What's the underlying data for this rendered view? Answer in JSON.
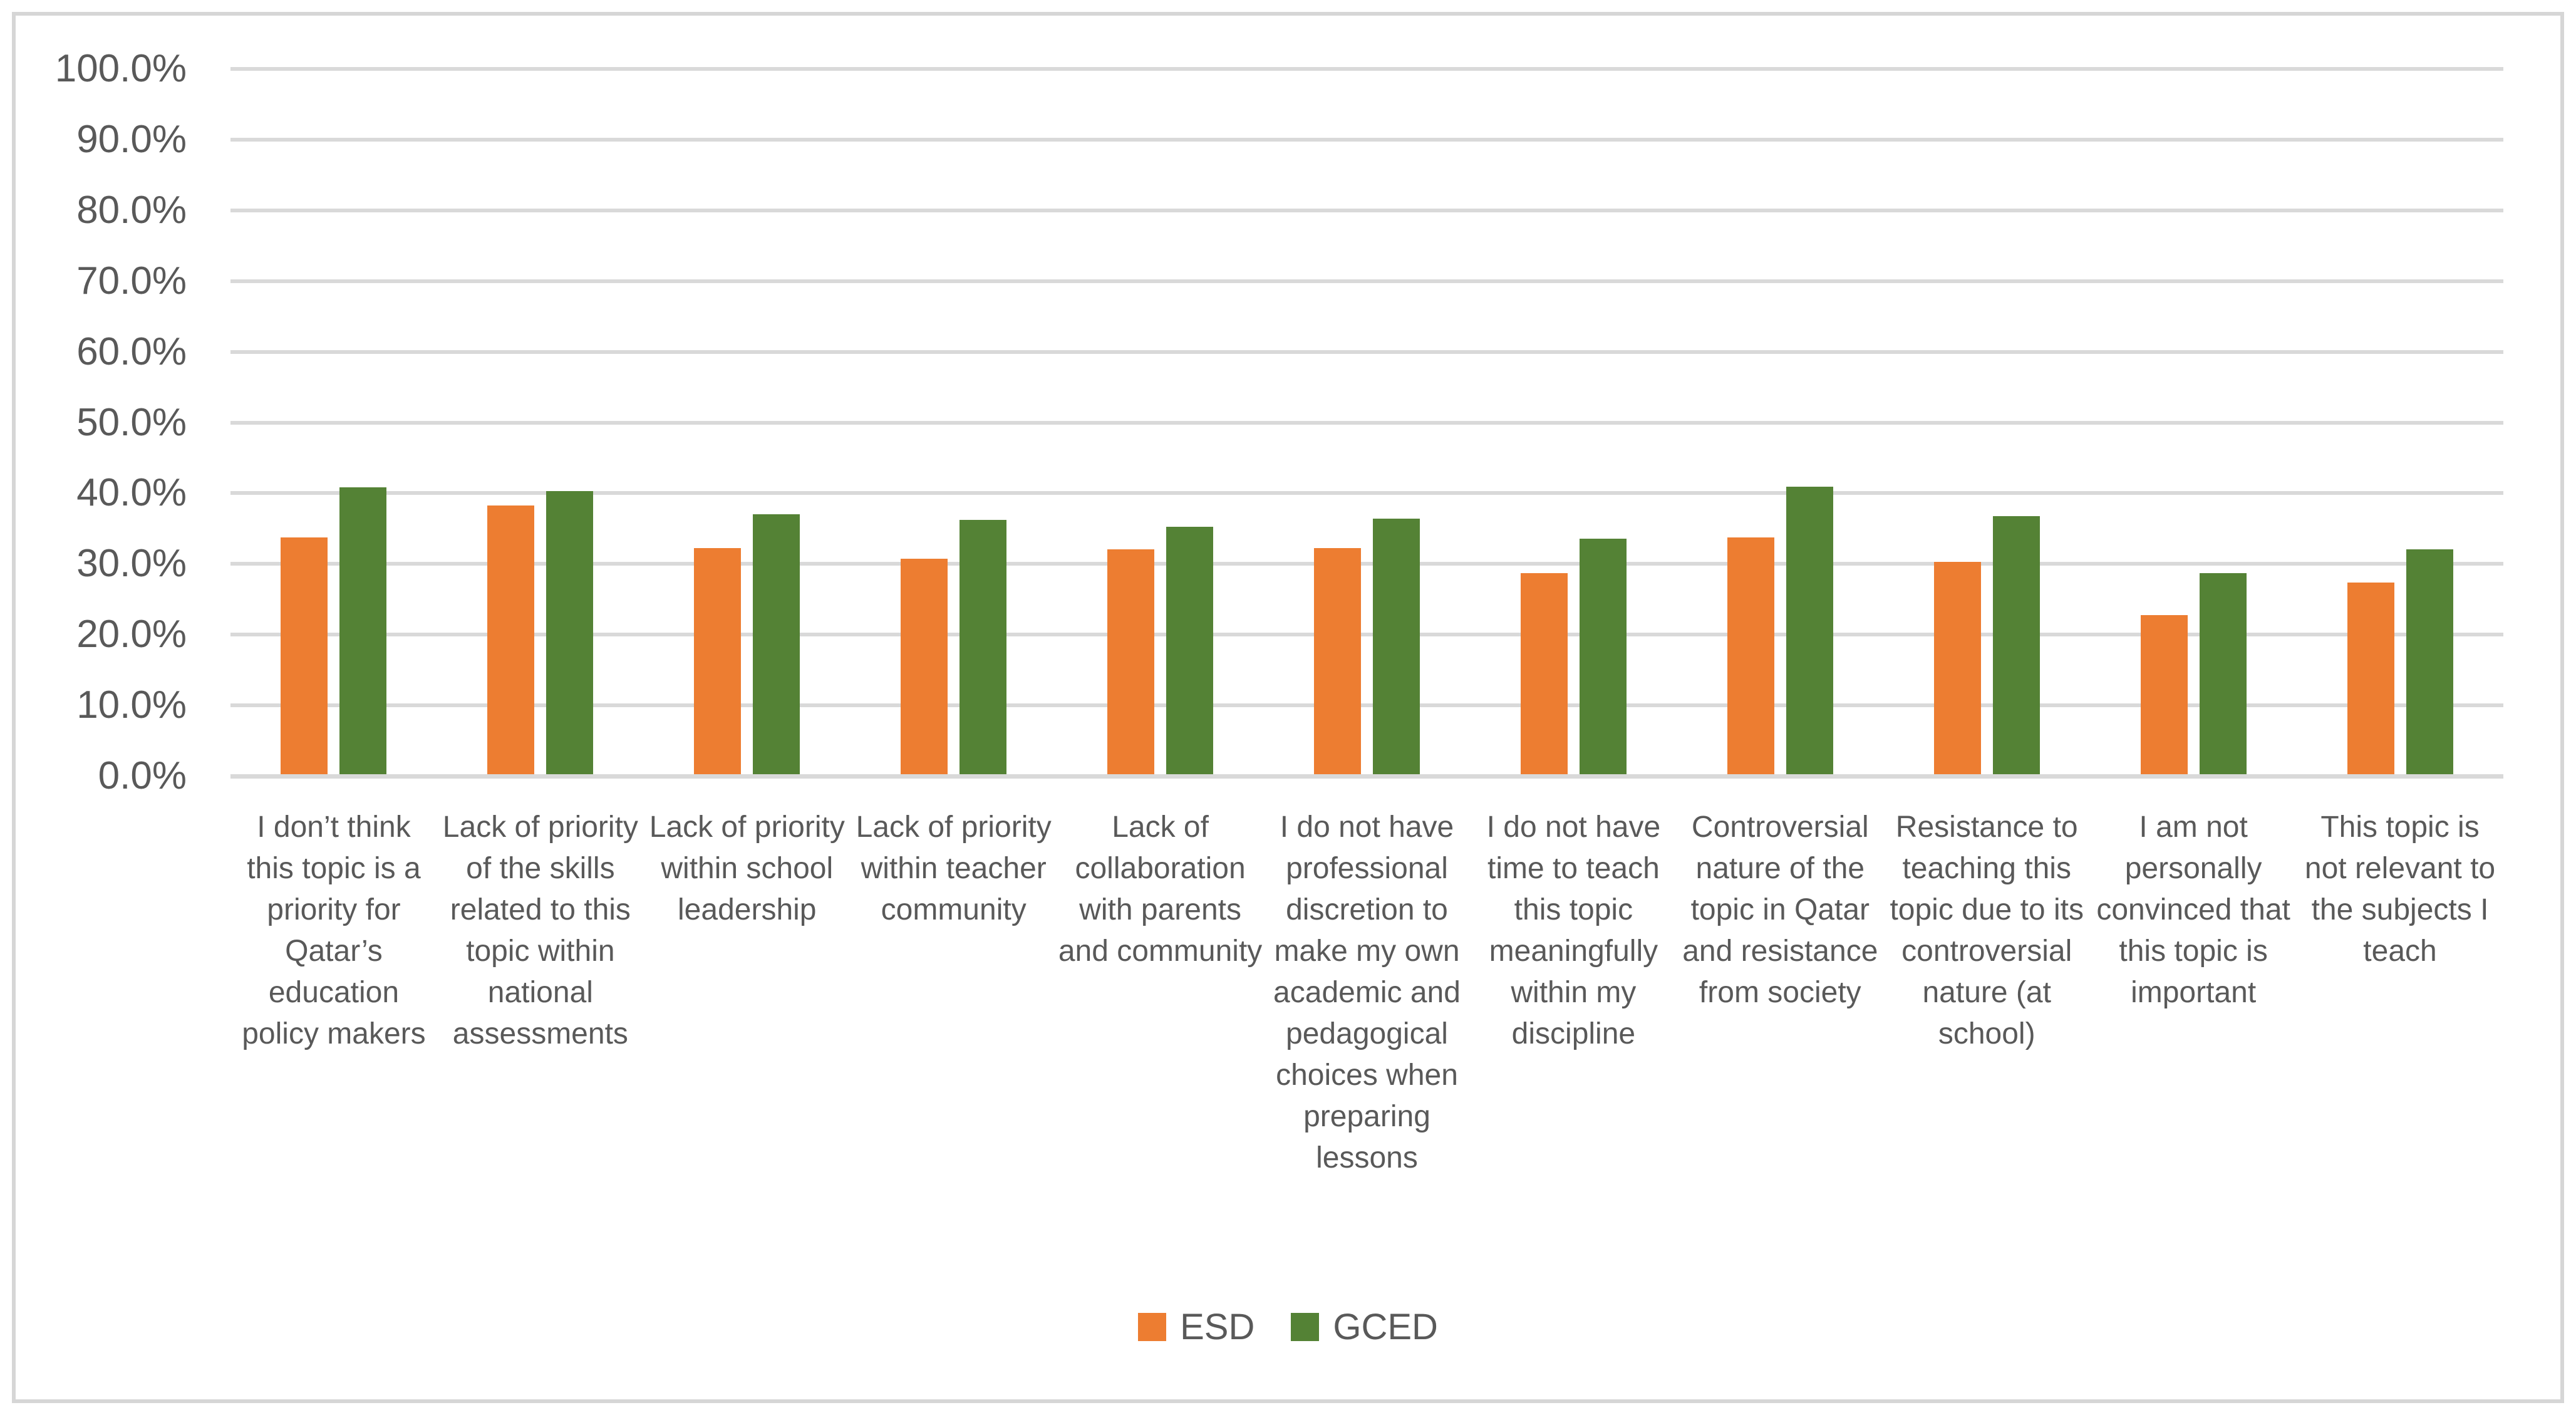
{
  "chart_data": {
    "type": "bar",
    "title": "",
    "xlabel": "",
    "ylabel": "",
    "categories": [
      "I don’t think this topic is a priority for Qatar’s education policy makers",
      "Lack of priority of the skills related to this topic within national assessments",
      "Lack of priority within school leadership",
      "Lack of priority within teacher community",
      "Lack of collaboration with parents and community",
      "I do not have professional discretion to make my own academic and pedagogical choices when preparing lessons",
      "I do not have time to teach this topic meaningfully within my discipline",
      "Controversial nature of the topic in Qatar and resistance from society",
      "Resistance to teaching this topic due to its controversial nature (at school)",
      "I am not personally convinced that this topic is important",
      "This topic is not relevant to the subjects I teach"
    ],
    "series": [
      {
        "name": "ESD",
        "color": "#ED7D31",
        "values": [
          33.5,
          38.0,
          32.0,
          30.5,
          31.8,
          32.0,
          28.4,
          33.5,
          30.0,
          22.5,
          27.1
        ]
      },
      {
        "name": "GCED",
        "color": "#548235",
        "values": [
          40.6,
          40.0,
          36.8,
          36.0,
          35.0,
          36.1,
          33.3,
          40.7,
          36.5,
          28.4,
          31.8
        ]
      }
    ],
    "ylim": [
      0,
      100
    ],
    "ytick_step": 10,
    "ytick_labels": [
      "0.0%",
      "10.0%",
      "20.0%",
      "30.0%",
      "40.0%",
      "50.0%",
      "60.0%",
      "70.0%",
      "80.0%",
      "90.0%",
      "100.0%"
    ],
    "grid": "horizontal",
    "legend_position": "bottom"
  },
  "styles": {
    "gridline_color": "#D9D9D9",
    "axis_text_color": "#595959",
    "frame_border_color": "#D6D6D6",
    "background": "#FFFFFF"
  }
}
